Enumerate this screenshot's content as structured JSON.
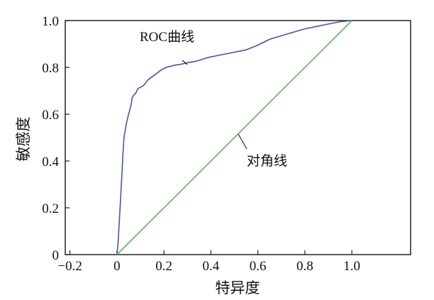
{
  "chart_data": {
    "type": "line",
    "title": "",
    "xlabel": "特异度",
    "ylabel": "敏感度",
    "xlim": [
      -0.22,
      1.25
    ],
    "ylim": [
      0,
      1.0
    ],
    "xticks": [
      -0.2,
      0,
      0.2,
      0.4,
      0.6,
      0.8,
      1.0
    ],
    "xtick_labels": [
      "−0.2",
      "0",
      "0.2",
      "0.4",
      "0.6",
      "0.8",
      "1.0"
    ],
    "yticks": [
      0,
      0.2,
      0.4,
      0.6,
      0.8,
      1.0
    ],
    "ytick_labels": [
      "0",
      "0.2",
      "0.4",
      "0.6",
      "0.8",
      "1.0"
    ],
    "grid": false,
    "legend": "none",
    "series": [
      {
        "color": "#4455aa",
        "x": [
          0,
          0.005,
          0.01,
          0.015,
          0.02,
          0.025,
          0.03,
          0.035,
          0.04,
          0.045,
          0.05,
          0.055,
          0.06,
          0.065,
          0.07,
          0.08,
          0.09,
          0.1,
          0.11,
          0.12,
          0.13,
          0.15,
          0.17,
          0.19,
          0.21,
          0.23,
          0.25,
          0.28,
          0.3,
          0.33,
          0.35,
          0.38,
          0.4,
          0.45,
          0.5,
          0.55,
          0.6,
          0.65,
          0.7,
          0.75,
          0.8,
          0.85,
          0.9,
          0.95,
          1.0
        ],
        "y": [
          0,
          0.05,
          0.14,
          0.23,
          0.32,
          0.42,
          0.5,
          0.53,
          0.56,
          0.58,
          0.6,
          0.62,
          0.64,
          0.67,
          0.68,
          0.69,
          0.71,
          0.715,
          0.72,
          0.73,
          0.745,
          0.76,
          0.775,
          0.79,
          0.8,
          0.805,
          0.81,
          0.815,
          0.82,
          0.825,
          0.83,
          0.84,
          0.845,
          0.855,
          0.865,
          0.875,
          0.895,
          0.92,
          0.935,
          0.95,
          0.965,
          0.975,
          0.985,
          0.995,
          1.0
        ]
      },
      {
        "color": "#5cb85c",
        "x": [
          0,
          1.0
        ],
        "y": [
          0,
          1.0
        ]
      }
    ],
    "annotations": [
      {
        "text": "ROC曲线",
        "x": 0.28,
        "y": 0.81
      },
      {
        "text": "对角线",
        "x": 0.53,
        "y": 0.53
      }
    ]
  }
}
